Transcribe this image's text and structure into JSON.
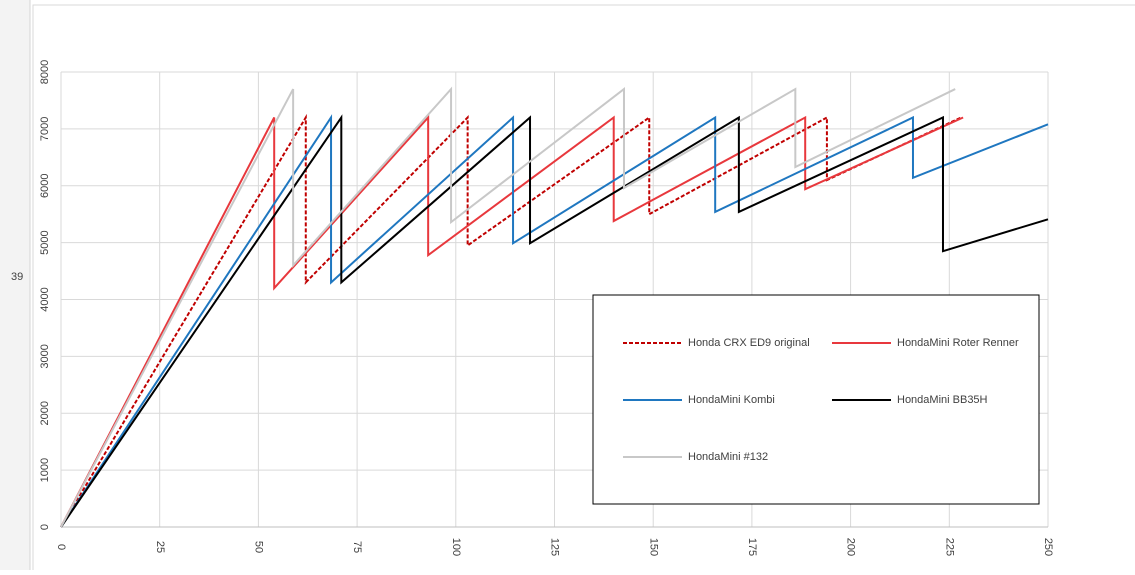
{
  "row_number": "39",
  "chart_data": {
    "type": "line",
    "xlim": [
      0,
      250
    ],
    "xticks": [
      0,
      25,
      50,
      75,
      100,
      125,
      150,
      175,
      200,
      225,
      250
    ],
    "ylim": [
      0,
      8000
    ],
    "yticks": [
      0,
      1000,
      2000,
      3000,
      4000,
      5000,
      6000,
      7000,
      8000
    ],
    "grid": true,
    "legend": "lower right",
    "series": [
      {
        "name": "Honda CRX ED9 original",
        "color": "#c00000",
        "dashed": true,
        "x": [
          0,
          62,
          62,
          103,
          103,
          149,
          149,
          194,
          194,
          228
        ],
        "values": [
          0,
          7200,
          4300,
          7200,
          4950,
          7200,
          5500,
          7200,
          6100,
          7200
        ]
      },
      {
        "name": "HondaMini Roter Renner",
        "color": "#e8383d",
        "dashed": false,
        "x": [
          0,
          54,
          54,
          93,
          93,
          140,
          140,
          188.5,
          188.5,
          228.5
        ],
        "values": [
          0,
          7200,
          4200,
          7200,
          4780,
          7200,
          5380,
          7200,
          5940,
          7200
        ]
      },
      {
        "name": "HondaMini Kombi",
        "color": "#1f77c0",
        "dashed": false,
        "x": [
          0,
          68.4,
          68.4,
          114.5,
          114.5,
          165.7,
          165.7,
          215.8,
          215.8,
          250
        ],
        "values": [
          0,
          7200,
          4300,
          7200,
          4990,
          7200,
          5540,
          7200,
          6140,
          7080
        ]
      },
      {
        "name": "HondaMini BB35H",
        "color": "#000000",
        "dashed": false,
        "x": [
          0,
          71,
          71,
          118.8,
          118.8,
          171.7,
          171.7,
          223.4,
          223.4,
          250
        ],
        "values": [
          0,
          7200,
          4300,
          7200,
          4990,
          7200,
          5540,
          7200,
          4850,
          5410
        ]
      },
      {
        "name": "HondaMini #132",
        "color": "#c8c8c8",
        "dashed": false,
        "x": [
          0,
          58.8,
          58.8,
          98.8,
          98.8,
          142.6,
          142.6,
          186,
          186,
          226.5
        ],
        "values": [
          0,
          7700,
          4600,
          7700,
          5360,
          7700,
          5960,
          7700,
          6330,
          7700
        ]
      }
    ]
  }
}
